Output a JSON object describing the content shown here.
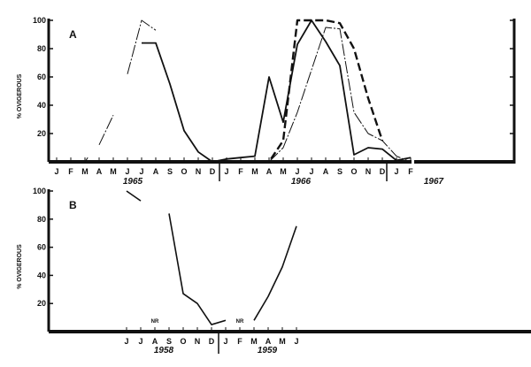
{
  "chart_data": [
    {
      "type": "line",
      "panel_label": "A",
      "ylabel": "% OVIGEROUS",
      "ylim": [
        0,
        100
      ],
      "yticks": [
        "20",
        "40",
        "60",
        "80",
        "100"
      ],
      "categories": [
        "J",
        "F",
        "M",
        "A",
        "M",
        "J",
        "J",
        "A",
        "S",
        "O",
        "N",
        "D",
        "J",
        "F",
        "M",
        "A",
        "M",
        "J",
        "J",
        "A",
        "S",
        "O",
        "N",
        "D",
        "J",
        "F"
      ],
      "year_labels": [
        "1965",
        "1966",
        "1967"
      ],
      "series": [
        {
          "style": "solid-heavy",
          "segments": [
            [
              [
                6,
                84
              ],
              [
                7,
                84
              ],
              [
                8,
                55
              ],
              [
                9,
                22
              ],
              [
                10,
                7
              ],
              [
                11,
                0
              ],
              [
                12,
                2
              ],
              [
                13,
                3
              ],
              [
                14,
                4
              ],
              [
                15,
                60
              ],
              [
                16,
                28
              ],
              [
                17,
                83
              ],
              [
                18,
                100
              ],
              [
                19,
                85
              ],
              [
                20,
                68
              ],
              [
                21,
                5
              ],
              [
                22,
                10
              ],
              [
                23,
                9
              ],
              [
                24,
                1
              ],
              [
                25,
                3
              ]
            ]
          ]
        },
        {
          "style": "thin-dash-dot",
          "segments": [
            [
              [
                2,
                0
              ],
              [
                2.2,
                3
              ]
            ],
            [
              [
                3,
                12
              ],
              [
                4,
                33
              ]
            ],
            [
              [
                5,
                62
              ],
              [
                6,
                100
              ],
              [
                7,
                93
              ]
            ],
            [
              [
                15,
                0
              ],
              [
                16,
                10
              ],
              [
                17,
                35
              ],
              [
                18,
                65
              ],
              [
                19,
                95
              ],
              [
                20,
                94
              ],
              [
                21,
                35
              ],
              [
                22,
                20
              ],
              [
                23,
                15
              ],
              [
                24,
                4
              ],
              [
                25,
                0
              ]
            ]
          ]
        },
        {
          "style": "heavy-dashed",
          "segments": [
            [
              [
                12,
                0
              ],
              [
                13,
                0
              ],
              [
                14,
                0
              ],
              [
                15,
                0
              ],
              [
                16,
                15
              ],
              [
                17,
                100
              ],
              [
                18,
                100
              ],
              [
                19,
                100
              ],
              [
                20,
                98
              ],
              [
                21,
                80
              ],
              [
                22,
                45
              ],
              [
                23,
                15
              ]
            ]
          ]
        }
      ]
    },
    {
      "type": "line",
      "panel_label": "B",
      "ylabel": "% OVIGEROUS",
      "ylim": [
        0,
        100
      ],
      "yticks": [
        "20",
        "40",
        "60",
        "80",
        "100"
      ],
      "categories": [
        "J",
        "J",
        "A",
        "S",
        "O",
        "N",
        "D",
        "J",
        "F",
        "M",
        "A",
        "M",
        "J"
      ],
      "year_labels": [
        "1958",
        "1959"
      ],
      "annotations": [
        {
          "text": "NR",
          "month_index": 2
        },
        {
          "text": "NR",
          "month_index": 8
        }
      ],
      "series": [
        {
          "style": "solid",
          "segments": [
            [
              [
                0,
                100
              ],
              [
                1,
                93
              ]
            ],
            [
              [
                3,
                84
              ],
              [
                4,
                27
              ],
              [
                5,
                20
              ],
              [
                6,
                5
              ],
              [
                7,
                8
              ]
            ],
            [
              [
                9,
                8
              ],
              [
                10,
                25
              ],
              [
                11,
                46
              ],
              [
                12,
                75
              ]
            ]
          ]
        }
      ]
    }
  ]
}
